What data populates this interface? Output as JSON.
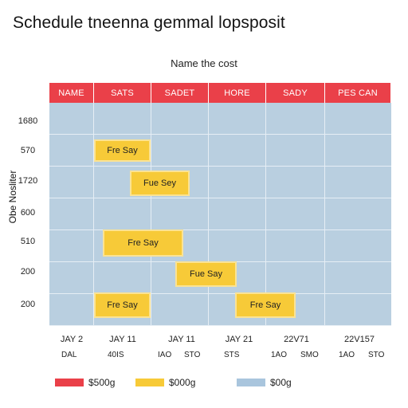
{
  "title": "Schedule tneenna gemmal lopsposit",
  "subtitle": "Name the cost",
  "y_axis_label": "Obe Nosliter",
  "colors": {
    "header": "#ea4049",
    "bar": "#f7ca38",
    "grid": "#b9cfe0"
  },
  "columns": [
    "NAME",
    "SATS",
    "SADET",
    "HORE",
    "SADY",
    "PES CAN"
  ],
  "row_labels": [
    "1680",
    "570",
    "1720",
    "600",
    "510",
    "200",
    "200"
  ],
  "bars": [
    {
      "label": "Fre Say",
      "row": 2
    },
    {
      "label": "Fue Sey",
      "row": 3
    },
    {
      "label": "Fre Say",
      "row": 5
    },
    {
      "label": "Fue Say",
      "row": 6
    },
    {
      "label": "Fre Say",
      "row": 7
    },
    {
      "label": "Fre Say",
      "row": 7
    }
  ],
  "x_labels": [
    "JAY 2",
    "JAY 11",
    "JAY 11",
    "JAY 21",
    "22V71",
    "22V157"
  ],
  "x_sub_labels": [
    "DAL",
    "40IS",
    "IAO",
    "STO",
    "STS",
    "1AO",
    "SMO",
    "1AO",
    "STO"
  ],
  "legend": [
    {
      "label": "$500g",
      "color": "#ea4049"
    },
    {
      "label": "$000g",
      "color": "#f7ca38"
    },
    {
      "label": "$00g",
      "color": "#a9c5dd"
    }
  ]
}
